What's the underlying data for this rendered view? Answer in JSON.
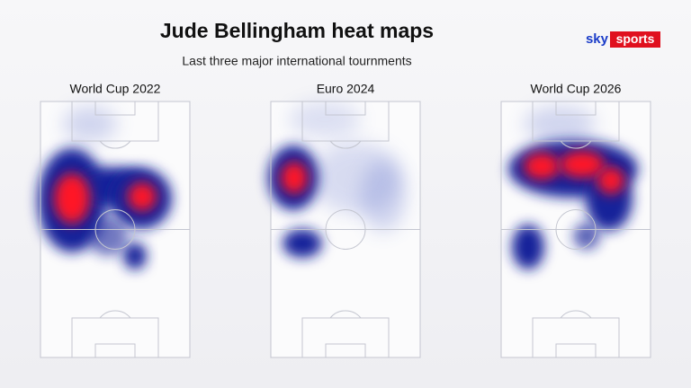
{
  "header": {
    "title": "Jude Bellingham heat maps",
    "subtitle": "Last three major international tournments"
  },
  "logo": {
    "brand": "sky",
    "product": "sports"
  },
  "panels": [
    {
      "label": "World Cup 2022"
    },
    {
      "label": "Euro 2024"
    },
    {
      "label": "World Cup 2026"
    }
  ]
}
